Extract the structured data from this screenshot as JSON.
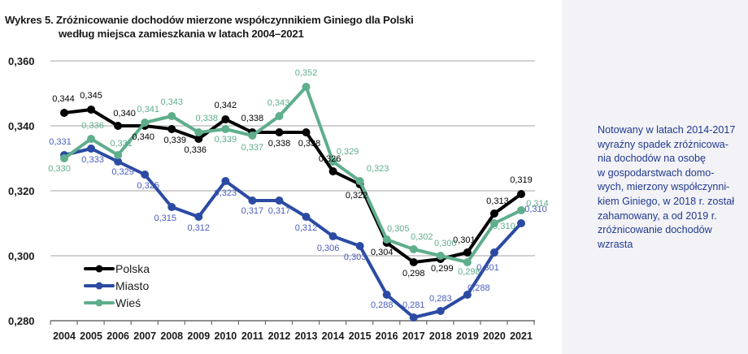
{
  "figure": {
    "title_line1": "Wykres 5. Zróżnicowanie dochodów mierzone współczynnikiem Giniego dla Polski",
    "title_line2": "według miejsca zamieszkania w latach 2004–2021"
  },
  "side_note": {
    "text": "Notowany w latach 2014-2017\nwyraźny spadek zróżnicowa-\nnia dochodów na osobę\nw gospodarstwach domo-\nwych, mierzony współczynni-\nkiem Giniego, w 2018 r. został\nzahamowany, a od 2019 r.\nzróżnicowanie dochodów\nwzrasta"
  },
  "chart_data": {
    "type": "line",
    "title": "Zróżnicowanie dochodów mierzone współczynnikiem Giniego dla Polski według miejsca zamieszkania w latach 2004–2021",
    "xlabel": "",
    "ylabel": "",
    "categories": [
      "2004",
      "2005",
      "2006",
      "2007",
      "2008",
      "2009",
      "2010",
      "2011",
      "2012",
      "2013",
      "2014",
      "2015",
      "2016",
      "2017",
      "2018",
      "2019",
      "2020",
      "2021"
    ],
    "ylim": [
      0.28,
      0.36
    ],
    "yticks": [
      0.28,
      0.3,
      0.32,
      0.34,
      0.36
    ],
    "ytick_labels": [
      "0,280",
      "0,300",
      "0,320",
      "0,340",
      "0,360"
    ],
    "grid": true,
    "legend_position": "bottom-left",
    "series": [
      {
        "name": "Polska",
        "color": "#000000",
        "values": [
          0.344,
          0.345,
          0.34,
          0.34,
          0.339,
          0.336,
          0.342,
          0.338,
          0.338,
          0.338,
          0.326,
          0.322,
          0.304,
          0.298,
          0.299,
          0.301,
          0.313,
          0.319
        ],
        "labels": [
          "0,344",
          "0,345",
          "0,340",
          "0,340",
          "0,339",
          "0,336",
          "0,342",
          "0,338",
          "0,338",
          "0,338",
          "0,326",
          "0,322",
          "0,304",
          "0,298",
          "0,299",
          "0,301",
          "0,313",
          "0,319"
        ]
      },
      {
        "name": "Miasto",
        "color": "#2b4ba3",
        "label_color": "#4a5dbd",
        "values": [
          0.331,
          0.333,
          0.329,
          0.325,
          0.315,
          0.312,
          0.323,
          0.317,
          0.317,
          0.312,
          0.306,
          0.303,
          0.288,
          0.281,
          0.283,
          0.288,
          0.301,
          0.31
        ],
        "labels": [
          "0,331",
          "0,333",
          "0,329",
          "0,325",
          "0,315",
          "0,312",
          "0,323",
          "0,317",
          "0,317",
          "0,312",
          "0,306",
          "0,303",
          "0,288",
          "0,281",
          "0,283",
          "0,288",
          "0,301",
          "0,310"
        ]
      },
      {
        "name": "Wieś",
        "color": "#5fae8c",
        "label_color": "#5fae8c",
        "values": [
          0.33,
          0.336,
          0.331,
          0.341,
          0.343,
          0.338,
          0.339,
          0.337,
          0.343,
          0.352,
          0.329,
          0.323,
          0.305,
          0.302,
          0.3,
          0.298,
          0.31,
          0.314
        ],
        "labels": [
          "0,330",
          "0,336",
          "0,331",
          "0,341",
          "0,343",
          "0,338",
          "0,339",
          "0,337",
          "0,343",
          "0,352",
          "0,329",
          "0,323",
          "0,305",
          "0,302",
          "0,300",
          "0,298",
          "0,310",
          "0,314"
        ]
      }
    ]
  }
}
